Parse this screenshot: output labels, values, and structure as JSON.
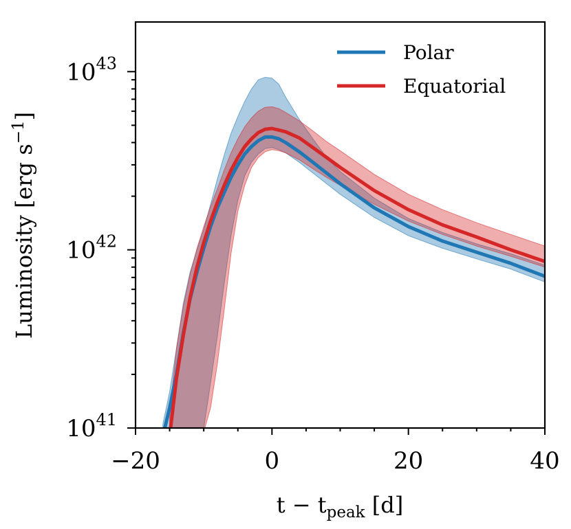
{
  "chart_data": {
    "type": "line",
    "title": "",
    "xlabel": "t − t",
    "xlabel_sub": "peak",
    "xlabel_suffix": " [d]",
    "ylabel": "Luminosity [erg s",
    "ylabel_sup": "−1",
    "ylabel_suffix": "]",
    "xlim": [
      -20,
      40
    ],
    "ylim": [
      1e+41,
      1.9e+43
    ],
    "yscale": "log",
    "x_ticks": [
      -20,
      0,
      20,
      40
    ],
    "x_tick_labels": [
      "−20",
      "0",
      "20",
      "40"
    ],
    "y_ticks": [
      1e+41,
      1e+42,
      1e+43
    ],
    "y_tick_base": "10",
    "y_tick_exponents": [
      "41",
      "42",
      "43"
    ],
    "legend_position": "top-right",
    "grid": false,
    "series": [
      {
        "name": "Polar",
        "color": "#1f77b4",
        "band_color": "#1f77b4",
        "x": [
          -16,
          -15,
          -14,
          -13,
          -12,
          -11,
          -10,
          -9,
          -8,
          -7,
          -6,
          -5,
          -4,
          -3,
          -2,
          -1,
          0,
          1,
          2,
          4,
          6,
          8,
          10,
          15,
          20,
          25,
          30,
          35,
          40
        ],
        "y": [
          9e+40,
          1.3e+41,
          2e+41,
          3.4e+41,
          5.3e+41,
          7.5e+41,
          1.02e+42,
          1.35e+42,
          1.72e+42,
          2.1e+42,
          2.55e+42,
          3e+42,
          3.45e+42,
          3.8e+42,
          4.1e+42,
          4.3e+42,
          4.3e+42,
          4.2e+42,
          4e+42,
          3.55e+42,
          3.1e+42,
          2.7e+42,
          2.35e+42,
          1.72e+42,
          1.35e+42,
          1.12e+42,
          9.7e+41,
          8.4e+41,
          7.1e+41
        ],
        "upper": [
          1.05e+41,
          1.6e+41,
          2.8e+41,
          5e+41,
          7.5e+41,
          1e+42,
          1.3e+42,
          1.8e+42,
          2.5e+42,
          3.4e+42,
          4.5e+42,
          5.6e+42,
          6.8e+42,
          8e+42,
          9e+42,
          9.3e+42,
          9.2e+42,
          8.5e+42,
          7.2e+42,
          5.4e+42,
          4.2e+42,
          3.3e+42,
          2.75e+42,
          1.95e+42,
          1.5e+42,
          1.25e+42,
          1.08e+42,
          9.5e+41,
          8.2e+41
        ],
        "lower": [
          8e+40,
          9.5e+40,
          9.5e+40,
          9.5e+40,
          9.5e+40,
          9.5e+40,
          1e+41,
          1.8e+41,
          3.3e+41,
          6.5e+41,
          1.2e+42,
          1.9e+42,
          2.6e+42,
          3.1e+42,
          3.45e+42,
          3.7e+42,
          3.75e+42,
          3.65e+42,
          3.5e+42,
          3.1e+42,
          2.7e+42,
          2.35e+42,
          2.05e+42,
          1.52e+42,
          1.2e+42,
          1.02e+42,
          8.9e+41,
          7.8e+41,
          6.6e+41
        ]
      },
      {
        "name": "Equatorial",
        "color": "#d62728",
        "band_color": "#d62728",
        "x": [
          -15,
          -14,
          -13,
          -12,
          -11,
          -10,
          -9,
          -8,
          -7,
          -6,
          -5,
          -4,
          -3,
          -2,
          -1,
          0,
          1,
          2,
          4,
          6,
          8,
          10,
          15,
          20,
          25,
          30,
          35,
          40
        ],
        "y": [
          9e+40,
          1.9e+41,
          3.3e+41,
          5.4e+41,
          8e+41,
          1.1e+42,
          1.45e+42,
          1.85e+42,
          2.3e+42,
          2.8e+42,
          3.3e+42,
          3.8e+42,
          4.2e+42,
          4.55e+42,
          4.75e+42,
          4.8e+42,
          4.7e+42,
          4.6e+42,
          4.25e+42,
          3.75e+42,
          3.3e+42,
          2.9e+42,
          2.15e+42,
          1.68e+42,
          1.38e+42,
          1.18e+42,
          1e+42,
          8.6e+41
        ],
        "upper": [
          1.2e+41,
          2.8e+41,
          4.8e+41,
          7.3e+41,
          1.02e+42,
          1.35e+42,
          1.75e+42,
          2.2e+42,
          2.8e+42,
          3.5e+42,
          4.2e+42,
          4.9e+42,
          5.5e+42,
          6e+42,
          6.3e+42,
          6.35e+42,
          6.2e+42,
          5.9e+42,
          5.3e+42,
          4.65e+42,
          4.05e+42,
          3.6e+42,
          2.65e+42,
          2.05e+42,
          1.68e+42,
          1.42e+42,
          1.22e+42,
          1.05e+42
        ],
        "lower": [
          8.5e+40,
          9.5e+40,
          9.5e+40,
          9.5e+40,
          9.5e+40,
          9.5e+40,
          1.3e+41,
          2.3e+41,
          4.6e+41,
          9.5e+41,
          1.65e+42,
          2.3e+42,
          2.9e+42,
          3.3e+42,
          3.55e+42,
          3.65e+42,
          3.6e+42,
          3.5e+42,
          3.2e+42,
          2.85e+42,
          2.55e+42,
          2.3e+42,
          1.8e+42,
          1.45e+42,
          1.22e+42,
          1.05e+42,
          9.2e+41,
          8e+41
        ]
      }
    ]
  }
}
